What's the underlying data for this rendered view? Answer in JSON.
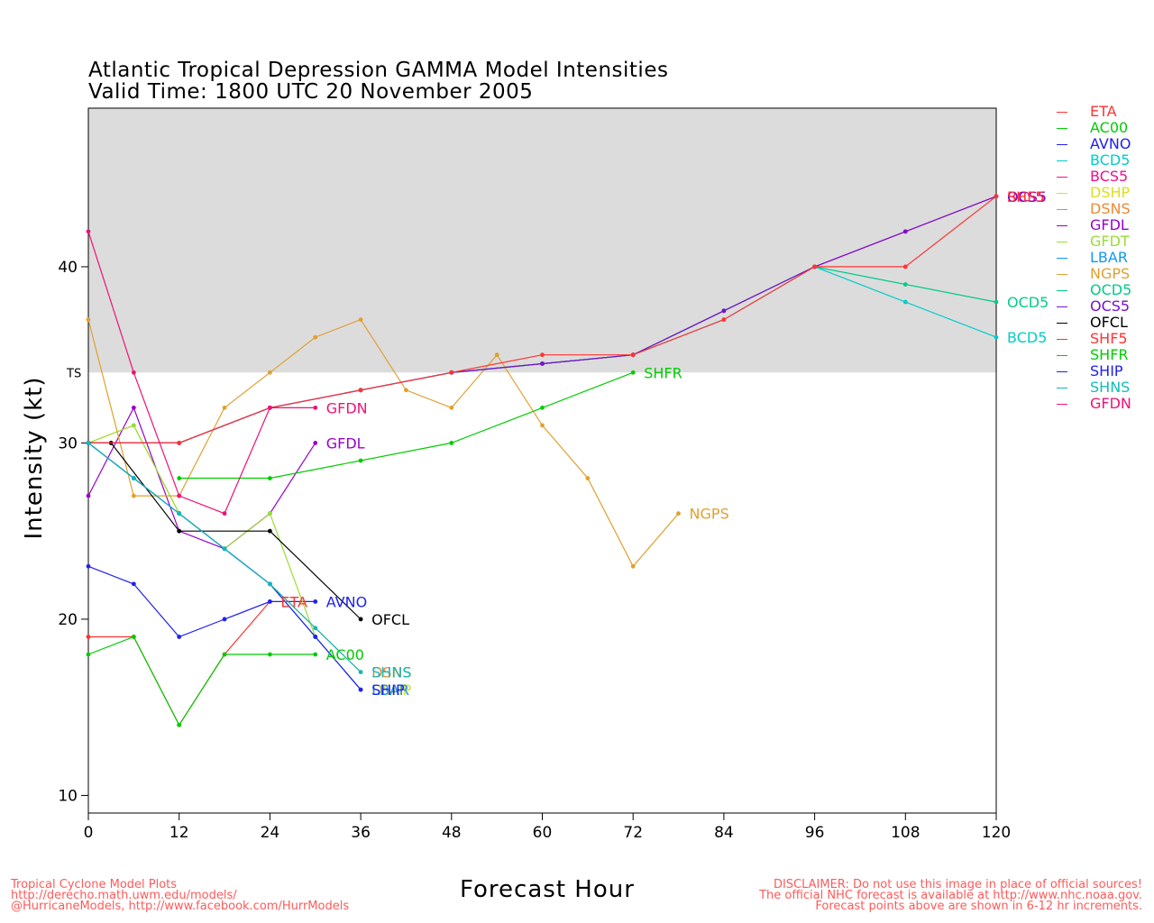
{
  "chart_data": {
    "type": "line",
    "title": "Atlantic Tropical Depression GAMMA Model Intensities",
    "subtitle": "Valid Time: 1800 UTC 20 November 2005",
    "xlabel": "Forecast Hour",
    "ylabel": "Intensity (kt)",
    "xlim": [
      0,
      120
    ],
    "ylim": [
      9,
      49
    ],
    "x_ticks": [
      0,
      12,
      24,
      36,
      48,
      60,
      72,
      84,
      96,
      108,
      120
    ],
    "y_ticks": [
      10,
      20,
      30,
      40
    ],
    "ts_threshold": {
      "value": 34,
      "label": "TS"
    },
    "legend_position": "right",
    "series": [
      {
        "name": "ETA",
        "color": "#ff3333",
        "x": [
          0,
          6,
          12,
          18,
          24
        ],
        "y": [
          19,
          19,
          14,
          18,
          21
        ],
        "end_label": "ETA"
      },
      {
        "name": "AC00",
        "color": "#00cc00",
        "x": [
          0,
          6,
          12,
          18,
          24,
          30
        ],
        "y": [
          18,
          19,
          14,
          18,
          18,
          18
        ],
        "end_label": "AC00"
      },
      {
        "name": "AVNO",
        "color": "#2020ee",
        "x": [
          0,
          6,
          12,
          18,
          24,
          30
        ],
        "y": [
          23,
          22,
          19,
          20,
          21,
          21
        ],
        "end_label": "AVNO"
      },
      {
        "name": "BCD5",
        "color": "#00cccc",
        "x": [
          0,
          12,
          24,
          36,
          48,
          60,
          72,
          84,
          96,
          108,
          120
        ],
        "y": [
          30,
          30,
          32,
          33,
          34,
          34.5,
          35,
          37,
          40,
          38,
          36
        ],
        "end_label": "BCD5"
      },
      {
        "name": "BCS5",
        "color": "#ee1188",
        "x": [
          0,
          12,
          24,
          36,
          48,
          60,
          72,
          84,
          96,
          108,
          120
        ],
        "y": [
          30,
          30,
          32,
          33,
          34,
          34.5,
          35,
          37.5,
          40,
          42,
          44
        ],
        "end_label": "BCS5"
      },
      {
        "name": "DSHP",
        "color": "#dddd22",
        "x": [
          0,
          6,
          12,
          18,
          24,
          30,
          36
        ],
        "y": [
          30,
          31,
          26,
          24,
          22,
          19,
          16
        ],
        "end_label": "DSHP"
      },
      {
        "name": "DSNS",
        "color": "#ee8833",
        "x": [
          0,
          6,
          12,
          18,
          24,
          30,
          36
        ],
        "y": [
          30,
          28,
          26,
          24,
          22,
          19.5,
          17
        ],
        "end_label": "DSNS"
      },
      {
        "name": "GFDL",
        "color": "#9900cc",
        "x": [
          0,
          6,
          12,
          18,
          24,
          30
        ],
        "y": [
          27,
          32,
          25,
          24,
          26,
          30
        ],
        "end_label": "GFDL"
      },
      {
        "name": "GFDT",
        "color": "#99dd33",
        "x": [
          0,
          6,
          12,
          18,
          24,
          30
        ],
        "y": [
          30,
          31,
          26,
          24,
          26,
          19
        ],
        "end_label": ""
      },
      {
        "name": "LBAR",
        "color": "#1199ee",
        "x": [
          0,
          6,
          12,
          18,
          24,
          30,
          36
        ],
        "y": [
          30,
          28,
          26,
          24,
          22,
          19,
          16
        ],
        "end_label": "LBAR"
      },
      {
        "name": "NGPS",
        "color": "#e0a030",
        "x": [
          0,
          6,
          12,
          18,
          24,
          30,
          36,
          42,
          48,
          54,
          60,
          66,
          72,
          78
        ],
        "y": [
          37,
          27,
          27,
          32,
          34,
          36,
          37,
          33,
          32,
          35,
          31,
          28,
          23,
          26
        ],
        "end_label": "NGPS"
      },
      {
        "name": "OCD5",
        "color": "#00cc88",
        "x": [
          0,
          12,
          24,
          36,
          48,
          60,
          72,
          84,
          96,
          108,
          120
        ],
        "y": [
          30,
          30,
          32,
          33,
          34,
          34.5,
          35,
          37.5,
          40,
          39,
          38
        ],
        "end_label": "OCD5"
      },
      {
        "name": "OCS5",
        "color": "#7711cc",
        "x": [
          0,
          12,
          24,
          36,
          48,
          60,
          72,
          84,
          96,
          108,
          120
        ],
        "y": [
          30,
          30,
          32,
          33,
          34,
          34.5,
          35,
          37.5,
          40,
          42,
          44
        ],
        "end_label": "OCS5"
      },
      {
        "name": "OFCL",
        "color": "#000000",
        "x": [
          3,
          12,
          24,
          36
        ],
        "y": [
          30,
          25,
          25,
          20
        ],
        "end_label": "OFCL"
      },
      {
        "name": "SHF5",
        "color": "#ff3333",
        "x": [
          0,
          12,
          24,
          36,
          48,
          60,
          72,
          84,
          96,
          108,
          120
        ],
        "y": [
          30,
          30,
          32,
          33,
          34,
          35,
          35,
          37,
          40,
          40,
          44
        ],
        "end_label": "SHF5"
      },
      {
        "name": "SHFR",
        "color": "#00cc00",
        "x": [
          12,
          24,
          36,
          48,
          60,
          72
        ],
        "y": [
          28,
          28,
          29,
          30,
          32,
          34
        ],
        "end_label": "SHFR"
      },
      {
        "name": "SHIP",
        "color": "#2020ee",
        "x": [
          0,
          6,
          12,
          18,
          24,
          30,
          36
        ],
        "y": [
          30,
          28,
          26,
          24,
          22,
          19,
          16
        ],
        "end_label": "SHIP"
      },
      {
        "name": "SHNS",
        "color": "#11bbbb",
        "x": [
          0,
          6,
          12,
          18,
          24,
          30,
          36
        ],
        "y": [
          30,
          28,
          26,
          24,
          22,
          19.5,
          17
        ],
        "end_label": "SHNS"
      },
      {
        "name": "GFDN",
        "color": "#ee1177",
        "x": [
          0,
          6,
          12,
          18,
          24,
          30
        ],
        "y": [
          42,
          34,
          27,
          26,
          32,
          32
        ],
        "end_label": "GFDN"
      }
    ]
  },
  "footer": {
    "left_line1": "Tropical Cyclone Model Plots",
    "left_line2": "http://derecho.math.uwm.edu/models/",
    "left_line3": "@HurricaneModels, http://www.facebook.com/HurrModels",
    "right_line1": "DISCLAIMER: Do not use this image in place of official sources!",
    "right_line2": "The official NHC forecast is available at http://www.nhc.noaa.gov.",
    "right_line3": "Forecast points above are shown in 6-12 hr increments."
  }
}
